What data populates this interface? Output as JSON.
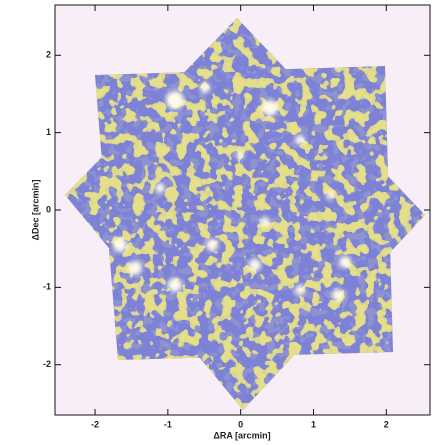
{
  "chart_data": {
    "type": "image",
    "xlabel": "ΔRA [arcmin]",
    "ylabel": "ΔDec [arcmin]",
    "xlim": [
      -2.55,
      2.6
    ],
    "ylim": [
      -2.65,
      2.65
    ],
    "xticks": [
      -2,
      -1,
      0,
      1,
      2
    ],
    "yticks": [
      -2,
      -1,
      0,
      1,
      2
    ]
  }
}
